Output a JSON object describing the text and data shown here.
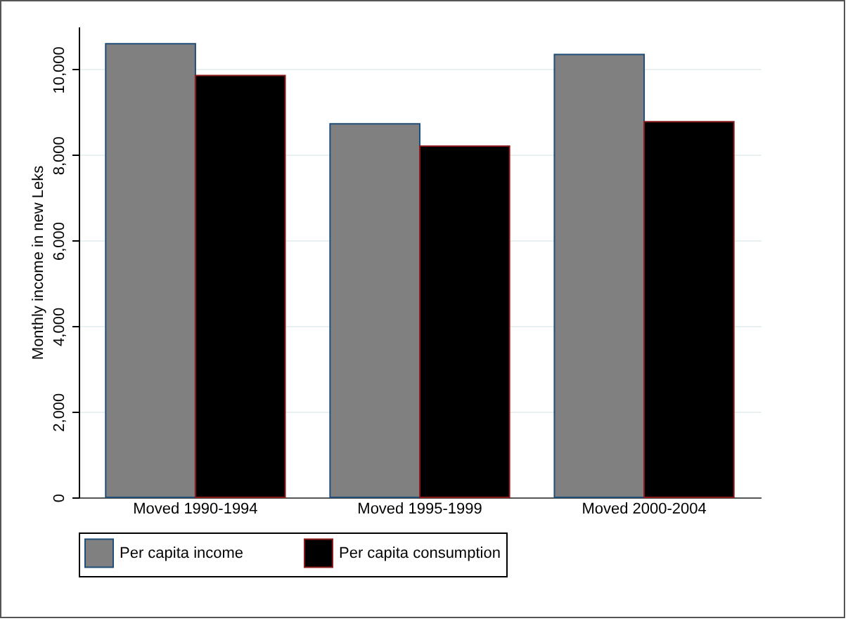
{
  "chart_data": {
    "type": "bar",
    "ylabel": "Monthly income in new Leks",
    "categories": [
      "Moved 1990-1994",
      "Moved 1995-1999",
      "Moved 2000-2004"
    ],
    "series": [
      {
        "name": "Per capita income",
        "color": "#808080",
        "values": [
          10600,
          8730,
          10350
        ]
      },
      {
        "name": "Per capita consumption",
        "color": "#000000",
        "values": [
          9860,
          8210,
          8780
        ]
      }
    ],
    "ylim": [
      0,
      11000
    ],
    "yticks": [
      {
        "value": 0,
        "label": "0"
      },
      {
        "value": 2000,
        "label": "2,000"
      },
      {
        "value": 4000,
        "label": "4,000"
      },
      {
        "value": 6000,
        "label": "6,000"
      },
      {
        "value": 8000,
        "label": "8,000"
      },
      {
        "value": 10000,
        "label": "10,000"
      }
    ],
    "grid": "y",
    "legend": "bottom"
  }
}
